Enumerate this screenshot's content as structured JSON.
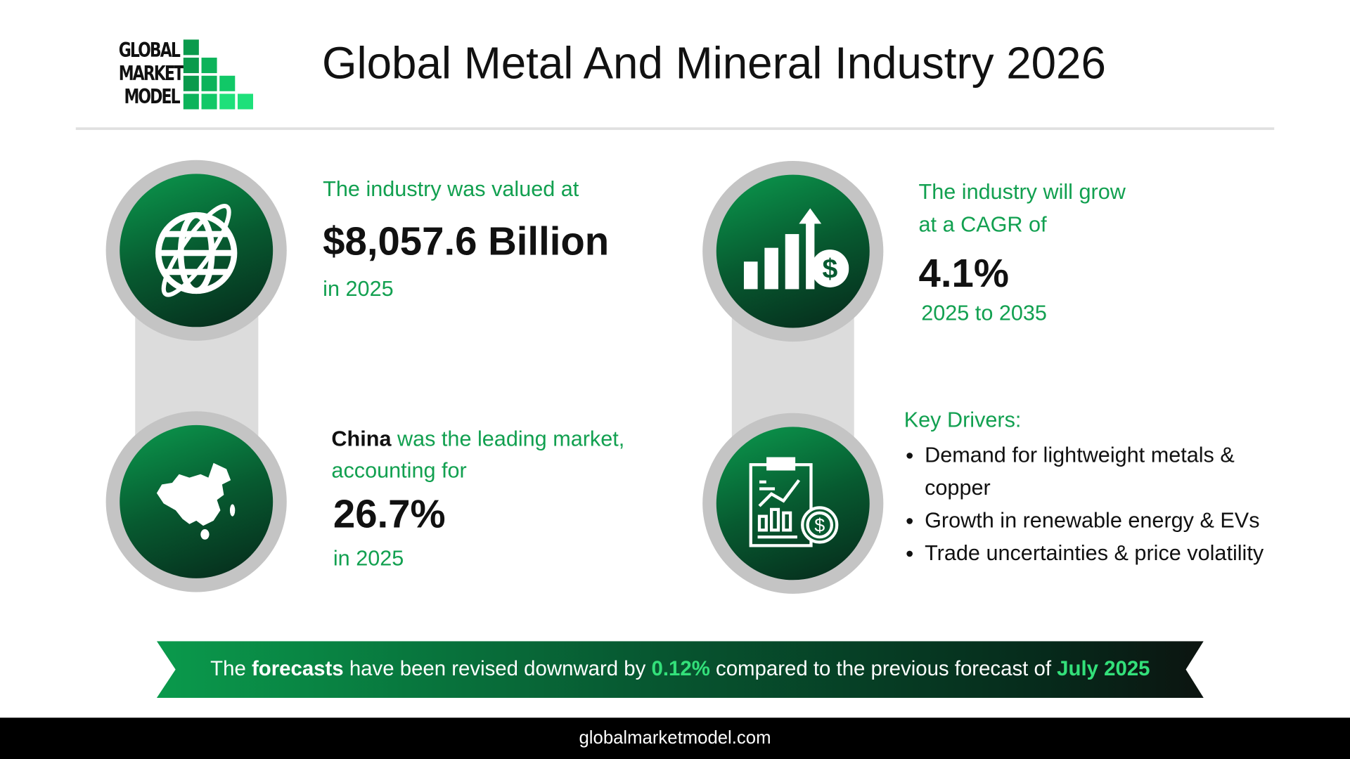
{
  "logo": {
    "lines": [
      "GLOBAL",
      "MARKET",
      "MODEL"
    ]
  },
  "header": {
    "title": "Global Metal And Mineral Industry 2026"
  },
  "stats": {
    "value": {
      "label": "The industry was valued at",
      "value": "$8,057.6 Billion",
      "year": "in 2025",
      "icon": "globe-icon"
    },
    "cagr": {
      "label_line1": "The industry will grow",
      "label_line2": "at a CAGR of",
      "value": "4.1%",
      "period": "2025 to 2035",
      "icon": "growth-chart-dollar-icon"
    },
    "market": {
      "country": "China",
      "label_rest": " was the leading market,",
      "label_line2": "accounting for",
      "value": "26.7%",
      "year": "in 2025",
      "icon": "china-map-icon"
    },
    "drivers": {
      "title": "Key Drivers:",
      "items": [
        "Demand for lightweight metals & copper",
        "Growth in renewable energy & EVs",
        "Trade uncertainties & price volatility"
      ],
      "icon": "report-dollar-icon"
    }
  },
  "banner": {
    "t1": "The ",
    "t2": "forecasts",
    "t3": " have been revised downward by ",
    "t4": "0.12%",
    "t5": " compared to the previous forecast of ",
    "t6": "July 2025"
  },
  "footer": {
    "url": "globalmarketmodel.com"
  },
  "colors": {
    "accent_green": "#12a050",
    "highlight_green": "#33e07a",
    "dark_green": "#06281a",
    "ring_gray": "#c4c4c4"
  }
}
